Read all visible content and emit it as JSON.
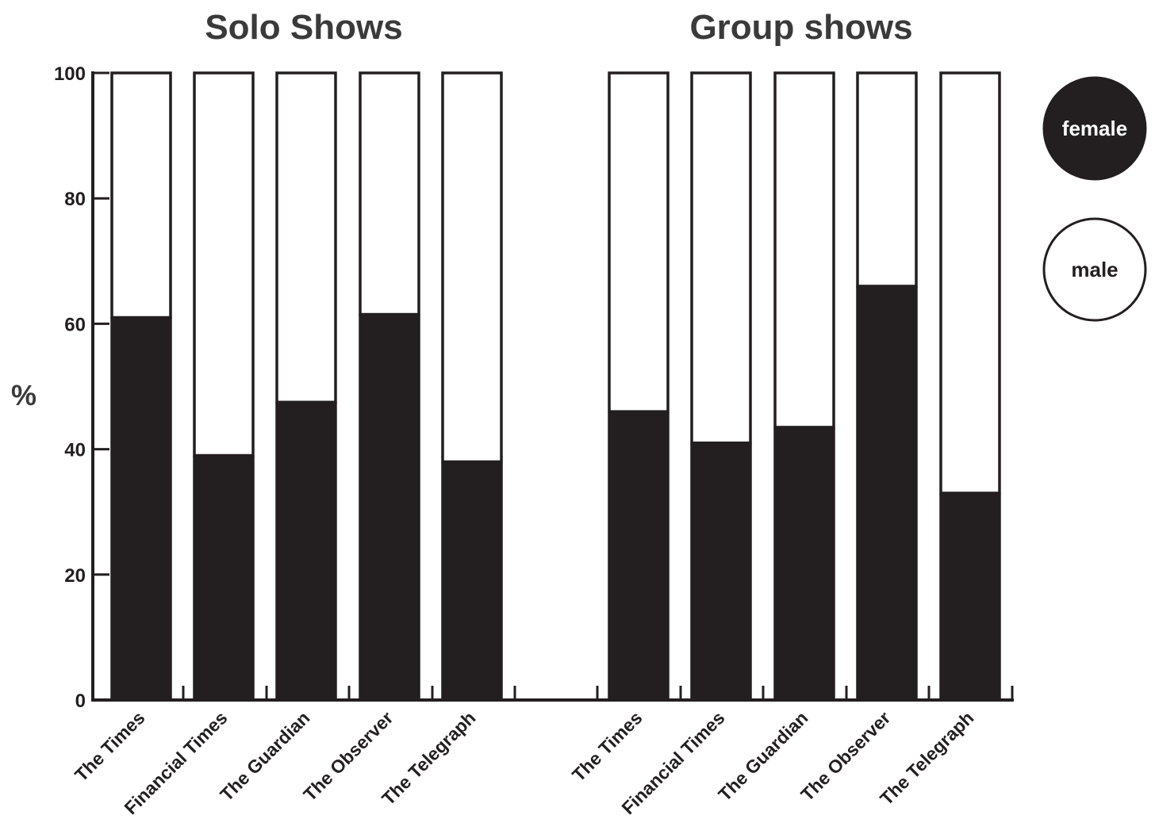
{
  "colors": {
    "female": "#231f20",
    "male": "#ffffff",
    "stroke": "#231f20",
    "title": "#3a3a3a"
  },
  "chart_data": {
    "type": "bar",
    "stacked": true,
    "ylabel": "%",
    "ylim": [
      0,
      100
    ],
    "yticks": [
      "0",
      "20",
      "40",
      "60",
      "80",
      "100"
    ],
    "grid": false,
    "legend": {
      "placement": "right",
      "entries": [
        {
          "label": "female",
          "color": "#231f20"
        },
        {
          "label": "male",
          "color": "#ffffff"
        }
      ]
    },
    "panels": [
      {
        "title": "Solo Shows",
        "categories": [
          "The Times",
          "Financial Times",
          "The Guardian",
          "The Observer",
          "The Telegraph"
        ],
        "series": [
          {
            "name": "female",
            "values": [
              61,
              39,
              47.5,
              61.5,
              38
            ]
          },
          {
            "name": "male",
            "values": [
              39,
              61,
              52.5,
              38.5,
              62
            ]
          }
        ]
      },
      {
        "title": "Group shows",
        "categories": [
          "The Times",
          "Financial Times",
          "The Guardian",
          "The Observer",
          "The Telegraph"
        ],
        "series": [
          {
            "name": "female",
            "values": [
              46,
              41,
              43.5,
              66,
              33
            ]
          },
          {
            "name": "male",
            "values": [
              54,
              59,
              56.5,
              34,
              67
            ]
          }
        ]
      }
    ]
  }
}
